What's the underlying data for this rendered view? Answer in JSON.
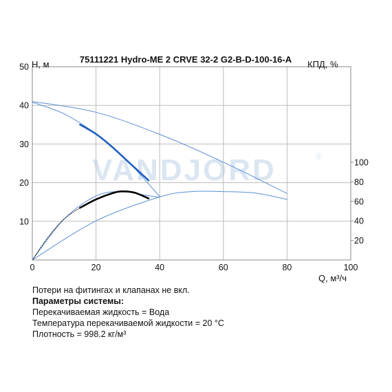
{
  "chart_data": {
    "type": "line",
    "title": "75111221 Hydro-ME 2 CRVE 32-2 G2-B-D-100-16-A",
    "ylabel": "H, м",
    "y2label": "КПД, %",
    "xlabel": "Q, м³/ч",
    "xlim": [
      0,
      100
    ],
    "ylim": [
      0,
      50
    ],
    "y2lim": [
      0,
      100
    ],
    "x_ticks": [
      "0",
      "20",
      "40",
      "60",
      "80",
      "100"
    ],
    "y_ticks": [
      "10",
      "20",
      "30",
      "40",
      "50"
    ],
    "y2_ticks": [
      "20",
      "40",
      "60",
      "80",
      "100"
    ],
    "grid": true,
    "series": [
      {
        "axis": "left",
        "color": "#5b8fd6",
        "x": [
          0,
          20,
          40,
          60,
          80
        ],
        "y": [
          41,
          38.2,
          32.5,
          25.3,
          17.2
        ]
      },
      {
        "axis": "left",
        "color": "#5b8fd6",
        "x": [
          0,
          10,
          20,
          30,
          40
        ],
        "y": [
          40.8,
          37.8,
          32.6,
          25.5,
          16.4
        ]
      },
      {
        "axis": "left",
        "color": "#1f5fbf",
        "x": [
          15,
          20,
          25,
          30,
          36.5
        ],
        "y": [
          35,
          32.6,
          29.3,
          25.5,
          20.6
        ]
      },
      {
        "axis": "right",
        "color": "#5b8fd6",
        "x": [
          0,
          20,
          40,
          50,
          60,
          70,
          80
        ],
        "y": [
          0,
          40,
          64.5,
          70,
          70,
          68.5,
          62
        ]
      },
      {
        "axis": "right",
        "color": "#5b8fd6",
        "x": [
          0,
          10,
          20,
          28,
          36,
          40
        ],
        "y": [
          0,
          42,
          65.5,
          70,
          66,
          64
        ]
      },
      {
        "axis": "right",
        "color": "#000000",
        "x": [
          0,
          5,
          10,
          15
        ],
        "y": [
          0,
          23.5,
          42,
          53.5
        ]
      },
      {
        "axis": "right",
        "color": "#000000",
        "x": [
          15,
          20,
          25,
          28,
          32,
          36.5
        ],
        "y": [
          53.5,
          62,
          68.2,
          70.2,
          69,
          63
        ]
      }
    ]
  },
  "watermark": {
    "text": "VANDJORD",
    "mark": "®"
  },
  "info": {
    "line1": "Потери на фитингах и клапанах не вкл.",
    "line2": "Параметры системы:",
    "line3": "Перекачиваемая жидкость = Вода",
    "line4": "Температура перекачиваемой жидкости = 20 °C",
    "line5": "Плотность = 998.2 кг/м³"
  }
}
